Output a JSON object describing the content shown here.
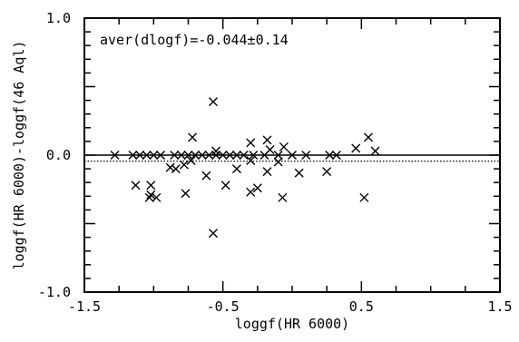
{
  "chart_data": {
    "type": "scatter",
    "title": "",
    "xlabel": "loggf(HR 6000)",
    "ylabel": "loggf(HR 6000)-loggf(46 Aql)",
    "xlim": [
      -1.5,
      1.5
    ],
    "ylim": [
      -1.0,
      1.0
    ],
    "x_ticks": [
      "-1.5",
      "-0.5",
      "0.5",
      "1.5"
    ],
    "y_ticks": [
      "1.0",
      "0.0",
      "-1.0"
    ],
    "x_tick_values": [
      -1.5,
      -0.5,
      0.5,
      1.5
    ],
    "y_tick_values": [
      1.0,
      0.0,
      -1.0
    ],
    "marker": "x",
    "annotation": "aver(dlogf)=-0.044±0.14",
    "reference_lines": [
      {
        "y": 0.0,
        "style": "solid"
      },
      {
        "y": -0.044,
        "style": "dotted"
      }
    ],
    "grid": false,
    "series": [
      {
        "points": [
          {
            "x": -1.28,
            "y": 0.0
          },
          {
            "x": -1.15,
            "y": 0.0
          },
          {
            "x": -1.1,
            "y": 0.0
          },
          {
            "x": -1.05,
            "y": 0.0
          },
          {
            "x": -1.0,
            "y": 0.0
          },
          {
            "x": -0.95,
            "y": 0.0
          },
          {
            "x": -0.85,
            "y": 0.0
          },
          {
            "x": -0.8,
            "y": 0.0
          },
          {
            "x": -0.75,
            "y": 0.0
          },
          {
            "x": -0.7,
            "y": 0.0
          },
          {
            "x": -0.65,
            "y": 0.0
          },
          {
            "x": -0.6,
            "y": 0.0
          },
          {
            "x": -0.55,
            "y": 0.0
          },
          {
            "x": -0.5,
            "y": 0.0
          },
          {
            "x": -0.45,
            "y": 0.0
          },
          {
            "x": -0.4,
            "y": 0.0
          },
          {
            "x": -0.35,
            "y": 0.0
          },
          {
            "x": -0.28,
            "y": 0.0
          },
          {
            "x": -0.2,
            "y": 0.0
          },
          {
            "x": -0.1,
            "y": 0.0
          },
          {
            "x": 0.0,
            "y": 0.0
          },
          {
            "x": 0.1,
            "y": 0.0
          },
          {
            "x": 0.27,
            "y": 0.0
          },
          {
            "x": 0.32,
            "y": 0.0
          },
          {
            "x": -0.57,
            "y": 0.39
          },
          {
            "x": -0.72,
            "y": 0.13
          },
          {
            "x": -0.3,
            "y": 0.09
          },
          {
            "x": -0.18,
            "y": 0.11
          },
          {
            "x": -0.06,
            "y": 0.06
          },
          {
            "x": 0.46,
            "y": 0.05
          },
          {
            "x": 0.55,
            "y": 0.13
          },
          {
            "x": 0.6,
            "y": 0.03
          },
          {
            "x": -0.55,
            "y": 0.03
          },
          {
            "x": -0.16,
            "y": 0.04
          },
          {
            "x": -0.3,
            "y": -0.04
          },
          {
            "x": -0.73,
            "y": -0.04
          },
          {
            "x": -0.88,
            "y": -0.09
          },
          {
            "x": -0.84,
            "y": -0.1
          },
          {
            "x": -0.78,
            "y": -0.07
          },
          {
            "x": -0.1,
            "y": -0.05
          },
          {
            "x": -0.62,
            "y": -0.15
          },
          {
            "x": -0.18,
            "y": -0.12
          },
          {
            "x": -0.4,
            "y": -0.1
          },
          {
            "x": 0.05,
            "y": -0.13
          },
          {
            "x": 0.25,
            "y": -0.12
          },
          {
            "x": -1.13,
            "y": -0.22
          },
          {
            "x": -1.02,
            "y": -0.22
          },
          {
            "x": -0.48,
            "y": -0.22
          },
          {
            "x": -0.77,
            "y": -0.28
          },
          {
            "x": -1.02,
            "y": -0.29
          },
          {
            "x": -0.98,
            "y": -0.31
          },
          {
            "x": -1.03,
            "y": -0.31
          },
          {
            "x": -0.3,
            "y": -0.27
          },
          {
            "x": -0.25,
            "y": -0.24
          },
          {
            "x": -0.07,
            "y": -0.31
          },
          {
            "x": 0.52,
            "y": -0.31
          },
          {
            "x": -0.57,
            "y": -0.57
          }
        ]
      }
    ]
  }
}
